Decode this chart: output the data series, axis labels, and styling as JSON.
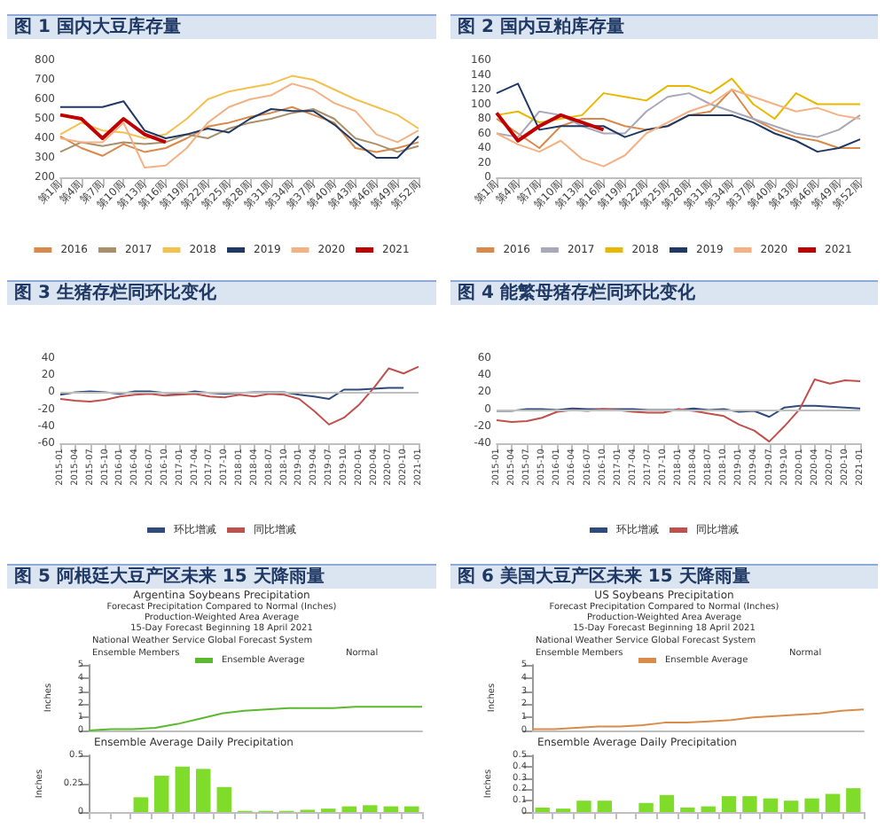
{
  "chart_data": [
    {
      "type": "line",
      "title": "图 1 国内大豆库存量",
      "categories": [
        "第1周",
        "第4周",
        "第7周",
        "第10周",
        "第13周",
        "第16周",
        "第19周",
        "第22周",
        "第25周",
        "第28周",
        "第31周",
        "第34周",
        "第37周",
        "第40周",
        "第43周",
        "第46周",
        "第49周",
        "第52周"
      ],
      "ylim": [
        200,
        800
      ],
      "yticks": [
        200,
        300,
        400,
        500,
        600,
        700,
        800
      ],
      "legend": "bottom",
      "series": [
        {
          "name": "2016",
          "color": "#d9894a",
          "values": [
            410,
            350,
            310,
            370,
            330,
            350,
            400,
            460,
            480,
            510,
            530,
            560,
            520,
            480,
            350,
            330,
            350,
            380
          ]
        },
        {
          "name": "2017",
          "color": "#a8906a",
          "values": [
            330,
            380,
            360,
            380,
            370,
            380,
            420,
            400,
            450,
            480,
            500,
            530,
            550,
            500,
            400,
            370,
            330,
            360
          ]
        },
        {
          "name": "2018",
          "color": "#f2c14e",
          "values": [
            420,
            480,
            440,
            430,
            400,
            420,
            500,
            600,
            640,
            660,
            680,
            720,
            700,
            650,
            600,
            560,
            520,
            450
          ]
        },
        {
          "name": "2019",
          "color": "#1f3864",
          "values": [
            560,
            560,
            560,
            590,
            440,
            400,
            420,
            450,
            430,
            500,
            550,
            540,
            540,
            470,
            380,
            300,
            300,
            410
          ]
        },
        {
          "name": "2020",
          "color": "#f4b183",
          "values": [
            400,
            380,
            380,
            480,
            250,
            260,
            350,
            480,
            560,
            600,
            620,
            680,
            650,
            580,
            540,
            420,
            380,
            440
          ]
        },
        {
          "name": "2021",
          "color": "#c00000",
          "values": [
            520,
            500,
            400,
            500,
            420,
            380,
            null,
            null,
            null,
            null,
            null,
            null,
            null,
            null,
            null,
            null,
            null,
            null
          ]
        }
      ]
    },
    {
      "type": "line",
      "title": "图 2 国内豆粕库存量",
      "categories": [
        "第1周",
        "第4周",
        "第7周",
        "第10周",
        "第13周",
        "第16周",
        "第19周",
        "第22周",
        "第25周",
        "第28周",
        "第31周",
        "第34周",
        "第37周",
        "第40周",
        "第43周",
        "第46周",
        "第49周",
        "第52周"
      ],
      "ylim": [
        0,
        160
      ],
      "yticks": [
        0,
        20,
        40,
        60,
        80,
        100,
        120,
        140,
        160
      ],
      "legend": "bottom",
      "series": [
        {
          "name": "2016",
          "color": "#d9894a",
          "values": [
            80,
            60,
            40,
            70,
            80,
            80,
            70,
            65,
            70,
            85,
            90,
            120,
            80,
            65,
            55,
            50,
            40,
            40
          ]
        },
        {
          "name": "2017",
          "color": "#a8a8b8",
          "values": [
            60,
            55,
            90,
            85,
            70,
            60,
            60,
            90,
            110,
            115,
            100,
            90,
            80,
            70,
            60,
            55,
            65,
            85
          ]
        },
        {
          "name": "2018",
          "color": "#e8b800",
          "values": [
            85,
            90,
            75,
            80,
            85,
            115,
            110,
            105,
            125,
            125,
            115,
            135,
            100,
            80,
            115,
            100,
            100,
            100
          ]
        },
        {
          "name": "2019",
          "color": "#1f3864",
          "values": [
            115,
            128,
            65,
            70,
            70,
            70,
            55,
            65,
            70,
            85,
            85,
            85,
            75,
            60,
            50,
            35,
            40,
            52
          ]
        },
        {
          "name": "2020",
          "color": "#f4b183",
          "values": [
            60,
            45,
            35,
            50,
            25,
            15,
            30,
            60,
            75,
            90,
            100,
            120,
            110,
            100,
            90,
            95,
            85,
            80
          ]
        },
        {
          "name": "2021",
          "color": "#c00000",
          "values": [
            88,
            50,
            70,
            85,
            75,
            65,
            null,
            null,
            null,
            null,
            null,
            null,
            null,
            null,
            null,
            null,
            null,
            null
          ]
        }
      ]
    },
    {
      "type": "line",
      "title": "图 3 生猪存栏同环比变化",
      "categories": [
        "2015-01",
        "2015-04",
        "2015-07",
        "2015-10",
        "2016-01",
        "2016-04",
        "2016-07",
        "2016-10",
        "2017-01",
        "2017-04",
        "2017-07",
        "2017-10",
        "2018-01",
        "2018-04",
        "2018-07",
        "2018-10",
        "2019-01",
        "2019-04",
        "2019-07",
        "2019-10",
        "2020-01",
        "2020-04",
        "2020-07",
        "2020-10",
        "2021-01"
      ],
      "ylim": [
        -60,
        40
      ],
      "yticks": [
        -60,
        -40,
        -20,
        0,
        20,
        40
      ],
      "legend": "bottom",
      "ref_lines": [
        {
          "axis": "y",
          "value": 0,
          "color": "#bfbfbf"
        }
      ],
      "series": [
        {
          "name": "环比增减",
          "color": "#2f4b7c",
          "values": [
            -3,
            0,
            1,
            0,
            -2,
            1,
            1,
            -1,
            -2,
            1,
            -1,
            -2,
            -1,
            0,
            0,
            0,
            -3,
            -5,
            -8,
            3,
            3,
            4,
            5,
            5,
            null
          ]
        },
        {
          "name": "同比增减",
          "color": "#c0504d",
          "values": [
            -8,
            -10,
            -11,
            -9,
            -5,
            -3,
            -2,
            -4,
            -3,
            -2,
            -5,
            -6,
            -3,
            -5,
            -2,
            -3,
            -8,
            -22,
            -38,
            -30,
            -15,
            5,
            28,
            22,
            30
          ]
        }
      ]
    },
    {
      "type": "line",
      "title": "图 4 能繁母猪存栏同环比变化",
      "categories": [
        "2015-01",
        "2015-04",
        "2015-07",
        "2015-10",
        "2016-01",
        "2016-04",
        "2016-07",
        "2016-10",
        "2017-01",
        "2017-04",
        "2017-07",
        "2017-10",
        "2018-01",
        "2018-04",
        "2018-07",
        "2018-10",
        "2019-01",
        "2019-04",
        "2019-07",
        "2019-10",
        "2020-01",
        "2020-04",
        "2020-07",
        "2020-10",
        "2021-01"
      ],
      "ylim": [
        -40,
        60
      ],
      "yticks": [
        -40,
        -20,
        0,
        20,
        40,
        60
      ],
      "legend": "bottom",
      "ref_lines": [
        {
          "axis": "y",
          "value": 0,
          "color": "#bfbfbf"
        }
      ],
      "series": [
        {
          "name": "环比增减",
          "color": "#2f4b7c",
          "values": [
            -2,
            -2,
            0,
            0,
            -1,
            1,
            0,
            0,
            0,
            0,
            -1,
            -1,
            -1,
            1,
            -1,
            0,
            -3,
            -2,
            -9,
            2,
            4,
            4,
            3,
            2,
            1
          ]
        },
        {
          "name": "同比增减",
          "color": "#c0504d",
          "values": [
            -13,
            -15,
            -14,
            -10,
            -3,
            -1,
            -2,
            0,
            -1,
            -3,
            -4,
            -4,
            0,
            -2,
            -5,
            -8,
            -18,
            -25,
            -38,
            -20,
            0,
            35,
            30,
            34,
            33
          ]
        }
      ]
    },
    {
      "type": "line",
      "title": "图 5 阿根廷大豆产区未来 15 天降雨量",
      "subtitle": "Argentina Soybeans Precipitation",
      "annotations": [
        "Forecast Precipitation Compared to Normal (Inches)",
        "Production-Weighted Area Average",
        "15-Day Forecast Beginning 18 April 2021",
        "National Weather Service Global Forecast System",
        "Ensemble Members",
        "Normal"
      ],
      "ylabel": "Inches",
      "categories": [
        null,
        null,
        null,
        null,
        null,
        null,
        null,
        null,
        null,
        null,
        null,
        null,
        null,
        null,
        null,
        null
      ],
      "ylim": [
        0,
        5
      ],
      "yticks": [
        0,
        1,
        2,
        3,
        4,
        5
      ],
      "legend": "top",
      "series": [
        {
          "name": "Ensemble Average",
          "color": "#5cb82e",
          "values": [
            0,
            0.1,
            0.1,
            0.2,
            0.5,
            0.9,
            1.3,
            1.5,
            1.6,
            1.7,
            1.7,
            1.7,
            1.8,
            1.8,
            1.8,
            1.8
          ]
        }
      ]
    },
    {
      "type": "bar",
      "title": "Ensemble Average Daily Precipitation",
      "ylabel": "Inches",
      "categories": [
        null,
        null,
        null,
        null,
        null,
        null,
        null,
        null,
        null,
        null,
        null,
        null,
        null,
        null,
        null,
        null
      ],
      "ylim": [
        0,
        0.5
      ],
      "yticks": [
        0,
        0.25,
        0.5
      ],
      "series": [
        {
          "color": "#7fdc2a",
          "values": [
            0,
            0,
            0.13,
            0.32,
            0.4,
            0.38,
            0.22,
            0.01,
            0.01,
            0.01,
            0.02,
            0.03,
            0.05,
            0.06,
            0.05,
            0.05
          ]
        }
      ]
    },
    {
      "type": "line",
      "title": "图 6 美国大豆产区未来 15 天降雨量",
      "subtitle": "US Soybeans Precipitation",
      "annotations": [
        "Forecast Precipitation Compared to Normal (Inches)",
        "Production-Weighted Area Average",
        "15-Day Forecast Beginning 18 April 2021",
        "National Weather Service Global Forecast System",
        "Ensemble Members",
        "Normal"
      ],
      "ylabel": "Inches",
      "categories": [
        null,
        null,
        null,
        null,
        null,
        null,
        null,
        null,
        null,
        null,
        null,
        null,
        null,
        null,
        null,
        null
      ],
      "ylim": [
        0,
        5
      ],
      "yticks": [
        0,
        1,
        2,
        3,
        4,
        5
      ],
      "legend": "top",
      "series": [
        {
          "name": "Ensemble Average",
          "color": "#d98c4a",
          "values": [
            0.1,
            0.1,
            0.2,
            0.3,
            0.3,
            0.4,
            0.6,
            0.6,
            0.7,
            0.8,
            1.0,
            1.1,
            1.2,
            1.3,
            1.5,
            1.6
          ]
        }
      ]
    },
    {
      "type": "bar",
      "title": "Ensemble Average Daily Precipitation",
      "ylabel": "Inches",
      "categories": [
        null,
        null,
        null,
        null,
        null,
        null,
        null,
        null,
        null,
        null,
        null,
        null,
        null,
        null,
        null,
        null
      ],
      "ylim": [
        0,
        0.5
      ],
      "yticks": [
        0,
        0.1,
        0.2,
        0.3,
        0.4,
        0.5
      ],
      "series": [
        {
          "color": "#7fdc2a",
          "values": [
            0.04,
            0.03,
            0.1,
            0.1,
            0,
            0.08,
            0.15,
            0.04,
            0.05,
            0.14,
            0.14,
            0.12,
            0.1,
            0.12,
            0.16,
            0.21
          ]
        }
      ]
    }
  ]
}
